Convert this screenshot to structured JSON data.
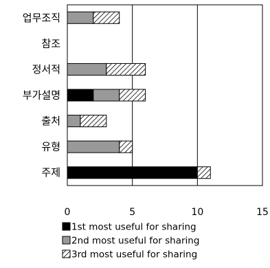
{
  "chart_data": {
    "type": "bar",
    "orientation": "horizontal",
    "stacked": true,
    "categories": [
      "업무조직",
      "참조",
      "정서적",
      "부가설명",
      "출처",
      "유형",
      "주제"
    ],
    "series": [
      {
        "name": "1st most useful for sharing",
        "pattern": "solid",
        "color": "#000000",
        "values": [
          0,
          0,
          0,
          2,
          0,
          0,
          10
        ]
      },
      {
        "name": "2nd most useful for sharing",
        "pattern": "solid",
        "color": "#999999",
        "values": [
          2,
          0,
          3,
          2,
          1,
          4,
          0
        ]
      },
      {
        "name": "3rd most useful for sharing",
        "pattern": "diagonal-hatch",
        "color": "#ffffff",
        "values": [
          2,
          0,
          3,
          2,
          2,
          1,
          1
        ]
      }
    ],
    "xlim": [
      0,
      15
    ],
    "xticks": [
      "0",
      "5",
      "10",
      "15"
    ],
    "xlabel": "",
    "ylabel": "",
    "title": "",
    "grid": "vertical gridlines at 5 and 10",
    "legend_position": "bottom"
  }
}
